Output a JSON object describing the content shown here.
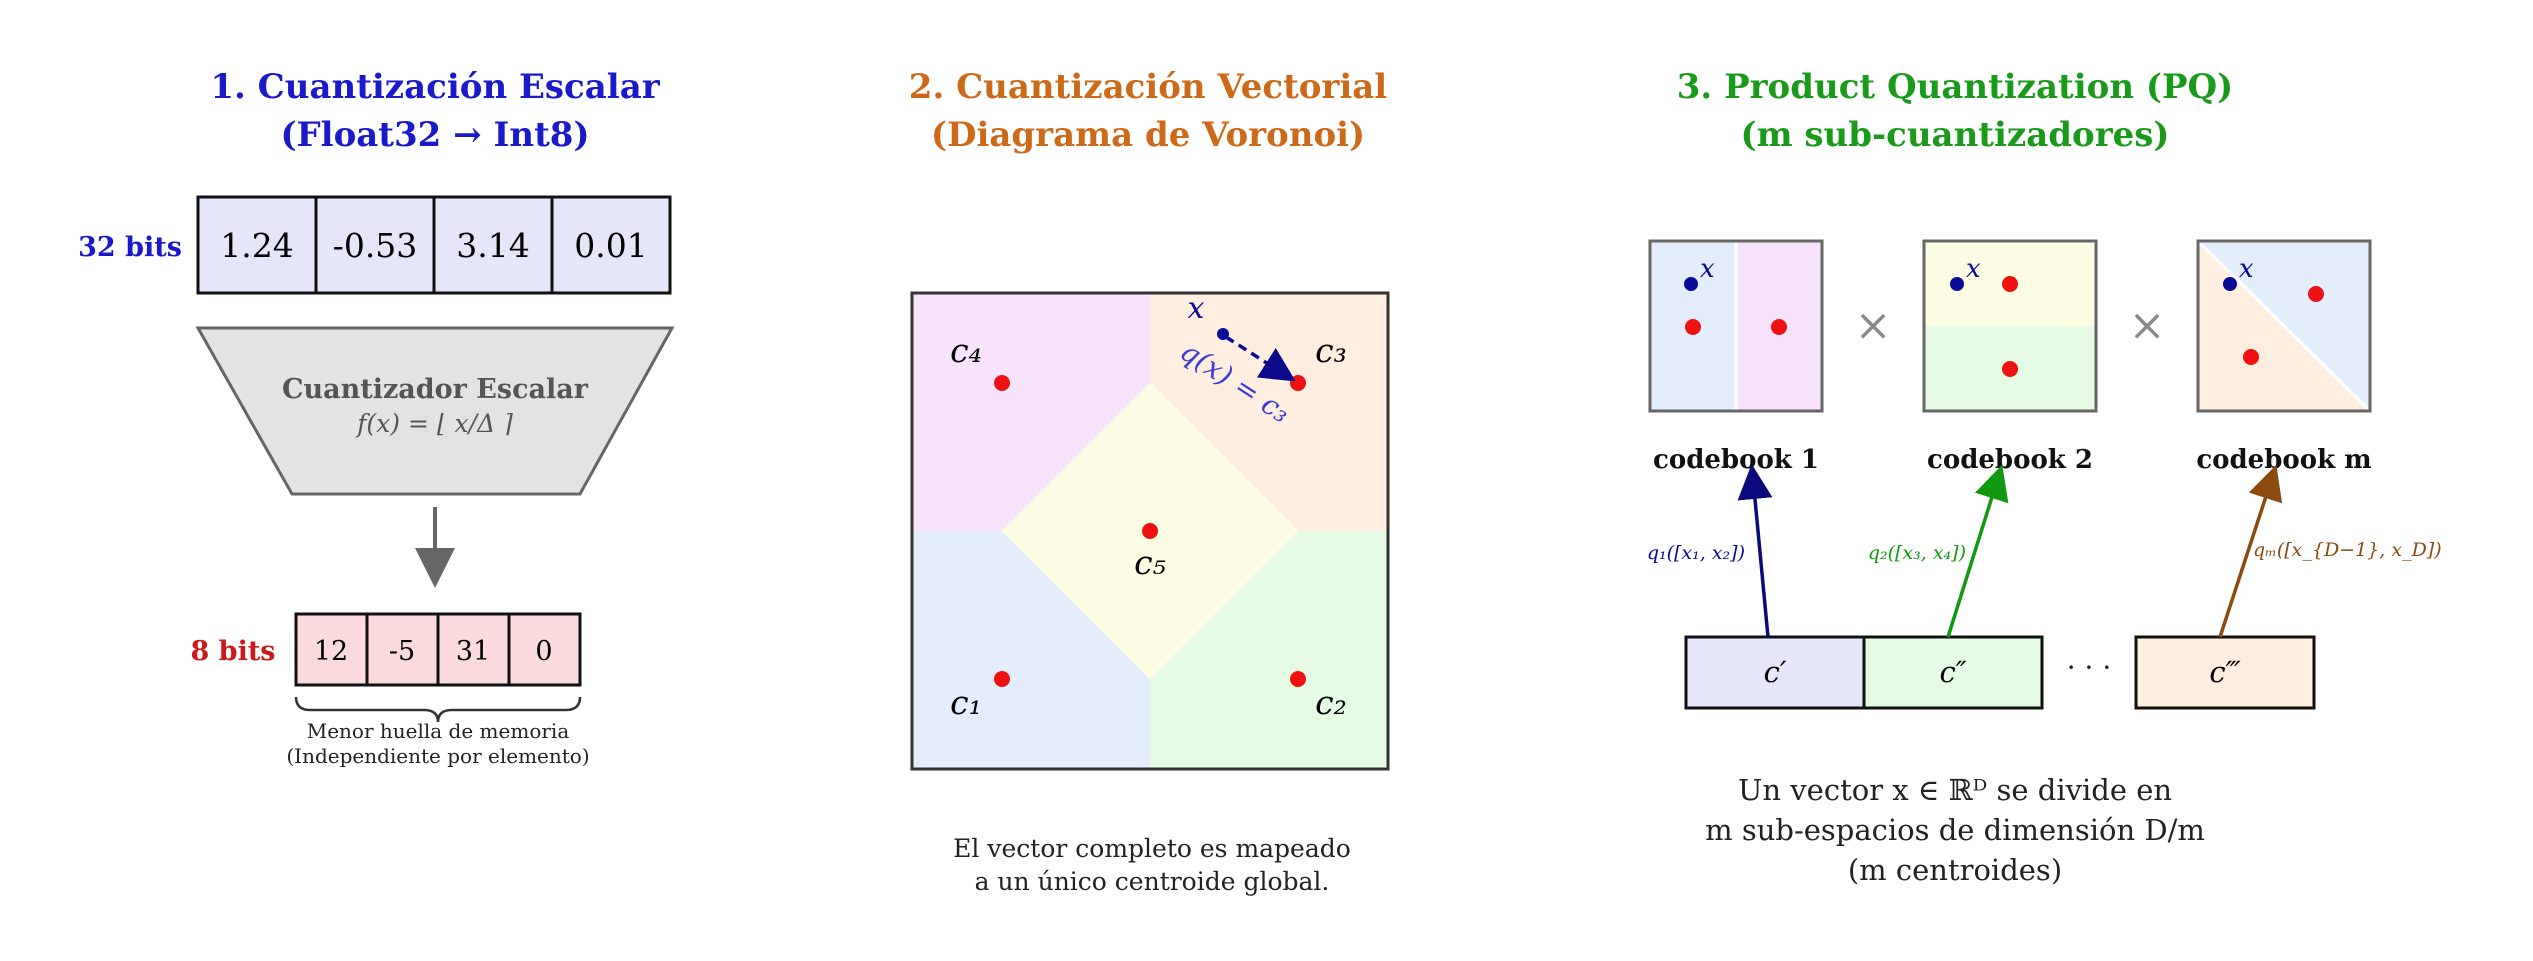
{
  "panel1": {
    "title_line1": "1. Cuantización Escalar",
    "title_line2": "(Float32 → Int8)",
    "bits32_label": "32 bits",
    "float_values": [
      "1.24",
      "-0.53",
      "3.14",
      "0.01"
    ],
    "quantizer_title": "Cuantizador Escalar",
    "quantizer_formula": "f(x) = ⌊ x/Δ ⌉",
    "bits8_label": "8 bits",
    "int_values": [
      "12",
      "-5",
      "31",
      "0"
    ],
    "caption_line1": "Menor huella de memoria",
    "caption_line2": "(Independiente por elemento)"
  },
  "panel2": {
    "title_line1": "2. Cuantización Vectorial",
    "title_line2": "(Diagrama de Voronoi)",
    "point_x": "x",
    "mapping": "q(x) = c₃",
    "centroids": {
      "c1": "c₁",
      "c2": "c₂",
      "c3": "c₃",
      "c4": "c₄",
      "c5": "c₅"
    },
    "caption_line1": "El vector completo es mapeado",
    "caption_line2": "a un único centroide global."
  },
  "panel3": {
    "title_line1": "3. Product Quantization (PQ)",
    "title_line2": "(m sub-cuantizadores)",
    "point_x": "x",
    "times": "×",
    "codebooks": [
      "codebook 1",
      "codebook 2",
      "codebook m"
    ],
    "codes": [
      "c′",
      "c″",
      "c‴"
    ],
    "ellipsis": "· · ·",
    "q_labels": [
      "q₁([x₁, x₂])",
      "q₂([x₃, x₄])",
      "qₘ([x_{D−1}, x_D])"
    ],
    "caption_line1": "Un vector x ∈ ℝᴰ se divide en",
    "caption_line2": "m sub-espacios de dimensión D/m",
    "caption_line3": "(m centroides)"
  },
  "colors": {
    "blue_title": "#1a1acc",
    "orange_title": "#cc6a1a",
    "green_title": "#1a9a1a",
    "red_label": "#cc1a1a",
    "float_cell": "#e6e6fa",
    "int_cell": "#fadadd",
    "centroid": "#ee1111"
  }
}
